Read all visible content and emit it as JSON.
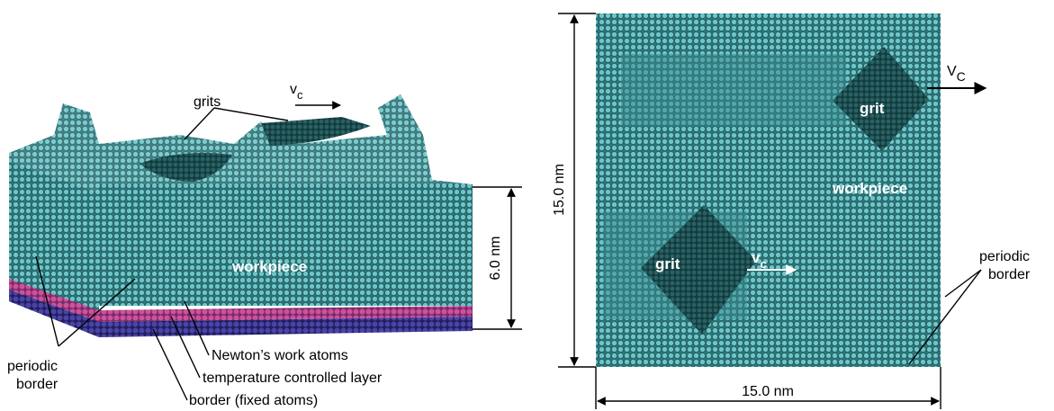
{
  "left_panel": {
    "grits_label": "grits",
    "velocity": {
      "main": "v",
      "sub": "c"
    },
    "workpiece_label": "workpiece",
    "height_label": "6.0 nm",
    "periodic_border": [
      "periodic",
      "border"
    ],
    "layers": [
      "Newton’s work atoms",
      "temperature controlled layer",
      "border (fixed atoms)"
    ]
  },
  "right_panel": {
    "height_label": "15.0 nm",
    "width_label": "15.0 nm",
    "velocity_top": {
      "main": "V",
      "sub": "C"
    },
    "grit_top": "grit",
    "workpiece_label": "workpiece",
    "grit_bottom": "grit",
    "velocity_bottom": {
      "main": "v",
      "sub": "c"
    },
    "periodic_border": [
      "periodic",
      "border"
    ]
  }
}
